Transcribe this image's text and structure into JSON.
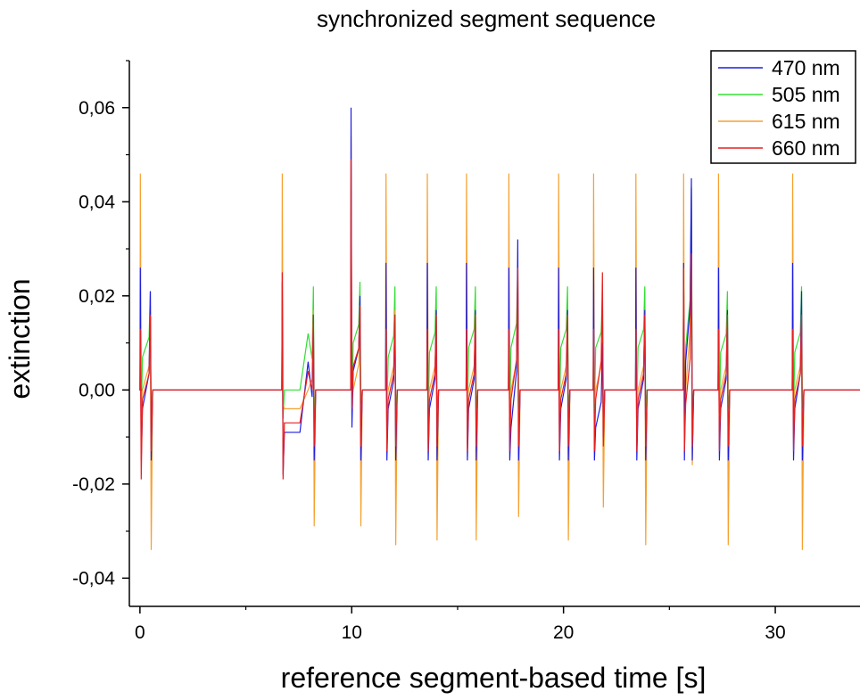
{
  "chart_data": {
    "type": "line",
    "title": "synchronized segment sequence",
    "xlabel": "reference segment-based time [s]",
    "ylabel": "extinction",
    "xlim": [
      -0.5,
      34
    ],
    "ylim": [
      -0.046,
      0.07
    ],
    "x_ticks": [
      0,
      10,
      20,
      30
    ],
    "x_tick_labels": [
      "0",
      "10",
      "20",
      "30"
    ],
    "y_ticks": [
      -0.04,
      -0.02,
      0.0,
      0.02,
      0.04,
      0.06
    ],
    "y_tick_labels": [
      "-0,04",
      "-0,02",
      "0,00",
      "0,02",
      "0,04",
      "0,06"
    ],
    "grid": false,
    "legend_position": "top-right",
    "segments": [
      {
        "start": 0.0,
        "end": 0.55,
        "p1": {
          "blue": 0.026,
          "green": 0.02,
          "orange": 0.046,
          "red": 0.013
        },
        "n1": {
          "blue": -0.015,
          "green": -0.006,
          "orange": -0.003,
          "red": -0.019
        },
        "p2": {
          "blue": 0.021,
          "green": 0.021,
          "orange": 0.017,
          "red": 0.016
        },
        "n2": {
          "blue": -0.015,
          "green": -0.006,
          "orange": -0.034,
          "red": -0.013
        },
        "mid": {
          "blue": -0.004,
          "green": 0.007,
          "orange": 0.0,
          "red": -0.002
        }
      },
      {
        "start": 6.7,
        "end": 8.25,
        "p1": {
          "blue": 0.023,
          "green": 0.013,
          "orange": 0.046,
          "red": 0.025
        },
        "n1": {
          "blue": -0.018,
          "green": -0.006,
          "orange": -0.003,
          "red": -0.019
        },
        "p2": {
          "blue": 0.016,
          "green": 0.022,
          "orange": 0.017,
          "red": 0.016
        },
        "n2": {
          "blue": -0.015,
          "green": -0.005,
          "orange": -0.029,
          "red": -0.012
        },
        "mid": {
          "blue": -0.009,
          "green": 0.0,
          "orange": -0.004,
          "red": -0.007
        },
        "mid2": {
          "blue": 0.006,
          "green": 0.012,
          "orange": 0.0,
          "red": 0.004
        }
      },
      {
        "start": 9.95,
        "end": 10.45,
        "p1": {
          "blue": 0.06,
          "green": 0.043,
          "orange": 0.054,
          "red": 0.049
        },
        "n1": {
          "blue": -0.008,
          "green": -0.004,
          "orange": -0.002,
          "red": -0.004
        },
        "p2": {
          "blue": 0.02,
          "green": 0.023,
          "orange": 0.018,
          "red": 0.018
        },
        "n2": {
          "blue": -0.015,
          "green": -0.003,
          "orange": -0.029,
          "red": -0.012
        },
        "mid": {
          "blue": 0.004,
          "green": 0.01,
          "orange": 0.0,
          "red": 0.005
        }
      },
      {
        "start": 11.6,
        "end": 12.1,
        "p1": {
          "blue": 0.027,
          "green": 0.015,
          "orange": 0.046,
          "red": 0.013
        },
        "n1": {
          "blue": -0.015,
          "green": -0.005,
          "orange": -0.003,
          "red": -0.013
        },
        "p2": {
          "blue": 0.016,
          "green": 0.022,
          "orange": 0.017,
          "red": 0.016
        },
        "n2": {
          "blue": -0.015,
          "green": -0.004,
          "orange": -0.033,
          "red": -0.012
        },
        "mid": {
          "blue": -0.004,
          "green": 0.007,
          "orange": 0.0,
          "red": -0.002
        }
      },
      {
        "start": 13.55,
        "end": 14.05,
        "p1": {
          "blue": 0.027,
          "green": 0.015,
          "orange": 0.046,
          "red": 0.013
        },
        "n1": {
          "blue": -0.015,
          "green": -0.005,
          "orange": -0.003,
          "red": -0.013
        },
        "p2": {
          "blue": 0.017,
          "green": 0.022,
          "orange": 0.017,
          "red": 0.016
        },
        "n2": {
          "blue": -0.015,
          "green": -0.004,
          "orange": -0.032,
          "red": -0.012
        },
        "mid": {
          "blue": -0.004,
          "green": 0.008,
          "orange": 0.0,
          "red": -0.002
        }
      },
      {
        "start": 15.4,
        "end": 15.9,
        "p1": {
          "blue": 0.027,
          "green": 0.015,
          "orange": 0.046,
          "red": 0.013
        },
        "n1": {
          "blue": -0.015,
          "green": -0.005,
          "orange": -0.003,
          "red": -0.013
        },
        "p2": {
          "blue": 0.017,
          "green": 0.022,
          "orange": 0.017,
          "red": 0.016
        },
        "n2": {
          "blue": -0.015,
          "green": -0.004,
          "orange": -0.032,
          "red": -0.012
        },
        "mid": {
          "blue": -0.004,
          "green": 0.009,
          "orange": 0.0,
          "red": -0.002
        }
      },
      {
        "start": 17.4,
        "end": 17.9,
        "p1": {
          "blue": 0.026,
          "green": 0.015,
          "orange": 0.046,
          "red": 0.013
        },
        "n1": {
          "blue": -0.015,
          "green": -0.005,
          "orange": -0.003,
          "red": -0.013
        },
        "p2": {
          "blue": 0.032,
          "green": 0.026,
          "orange": 0.02,
          "red": 0.026
        },
        "n2": {
          "blue": -0.015,
          "green": -0.004,
          "orange": -0.027,
          "red": -0.012
        },
        "mid": {
          "blue": -0.008,
          "green": 0.009,
          "orange": 0.0,
          "red": -0.002
        }
      },
      {
        "start": 19.75,
        "end": 20.25,
        "p1": {
          "blue": 0.026,
          "green": 0.015,
          "orange": 0.046,
          "red": 0.013
        },
        "n1": {
          "blue": -0.015,
          "green": -0.005,
          "orange": -0.003,
          "red": -0.013
        },
        "p2": {
          "blue": 0.017,
          "green": 0.022,
          "orange": 0.017,
          "red": 0.016
        },
        "n2": {
          "blue": -0.015,
          "green": -0.004,
          "orange": -0.032,
          "red": -0.012
        },
        "mid": {
          "blue": -0.004,
          "green": 0.009,
          "orange": 0.0,
          "red": -0.002
        }
      },
      {
        "start": 21.4,
        "end": 21.9,
        "p1": {
          "blue": 0.026,
          "green": 0.015,
          "orange": 0.046,
          "red": 0.013
        },
        "n1": {
          "blue": -0.015,
          "green": -0.005,
          "orange": -0.003,
          "red": -0.013
        },
        "p2": {
          "blue": 0.01,
          "green": 0.02,
          "orange": 0.017,
          "red": 0.025
        },
        "n2": {
          "blue": -0.01,
          "green": -0.004,
          "orange": -0.025,
          "red": -0.012
        },
        "mid": {
          "blue": -0.008,
          "green": 0.009,
          "orange": 0.0,
          "red": -0.002
        }
      },
      {
        "start": 23.4,
        "end": 23.9,
        "p1": {
          "blue": 0.026,
          "green": 0.015,
          "orange": 0.046,
          "red": 0.013
        },
        "n1": {
          "blue": -0.015,
          "green": -0.005,
          "orange": -0.003,
          "red": -0.013
        },
        "p2": {
          "blue": 0.017,
          "green": 0.022,
          "orange": 0.017,
          "red": 0.016
        },
        "n2": {
          "blue": -0.015,
          "green": -0.004,
          "orange": -0.033,
          "red": -0.012
        },
        "mid": {
          "blue": -0.004,
          "green": 0.009,
          "orange": 0.0,
          "red": -0.002
        }
      },
      {
        "start": 25.65,
        "end": 26.1,
        "p1": {
          "blue": 0.027,
          "green": 0.028,
          "orange": 0.046,
          "red": 0.026
        },
        "n1": {
          "blue": -0.015,
          "green": -0.004,
          "orange": -0.003,
          "red": -0.013
        },
        "p2": {
          "blue": 0.045,
          "green": 0.043,
          "orange": 0.043,
          "red": 0.029
        },
        "n2": {
          "blue": -0.015,
          "green": -0.004,
          "orange": -0.016,
          "red": -0.012
        },
        "mid": {
          "blue": 0.006,
          "green": 0.009,
          "orange": 0.0,
          "red": -0.003
        }
      },
      {
        "start": 27.3,
        "end": 27.8,
        "p1": {
          "blue": 0.026,
          "green": 0.015,
          "orange": 0.046,
          "red": 0.013
        },
        "n1": {
          "blue": -0.015,
          "green": -0.005,
          "orange": -0.003,
          "red": -0.013
        },
        "p2": {
          "blue": 0.017,
          "green": 0.021,
          "orange": 0.017,
          "red": 0.016
        },
        "n2": {
          "blue": -0.015,
          "green": -0.004,
          "orange": -0.033,
          "red": -0.012
        },
        "mid": {
          "blue": -0.004,
          "green": 0.008,
          "orange": 0.0,
          "red": -0.002
        }
      },
      {
        "start": 30.8,
        "end": 31.3,
        "p1": {
          "blue": 0.027,
          "green": 0.015,
          "orange": 0.046,
          "red": 0.013
        },
        "n1": {
          "blue": -0.015,
          "green": -0.005,
          "orange": -0.003,
          "red": -0.013
        },
        "p2": {
          "blue": 0.021,
          "green": 0.022,
          "orange": 0.017,
          "red": 0.016
        },
        "n2": {
          "blue": -0.015,
          "green": -0.004,
          "orange": -0.034,
          "red": -0.012
        },
        "mid": {
          "blue": -0.004,
          "green": 0.008,
          "orange": 0.0,
          "red": -0.002
        }
      }
    ],
    "series": [
      {
        "key": "blue",
        "name": "470 nm",
        "color": "#1f1fe0"
      },
      {
        "key": "green",
        "name": "505 nm",
        "color": "#33dd33"
      },
      {
        "key": "orange",
        "name": "615 nm",
        "color": "#f5a030"
      },
      {
        "key": "red",
        "name": "660 nm",
        "color": "#e62020"
      }
    ]
  }
}
